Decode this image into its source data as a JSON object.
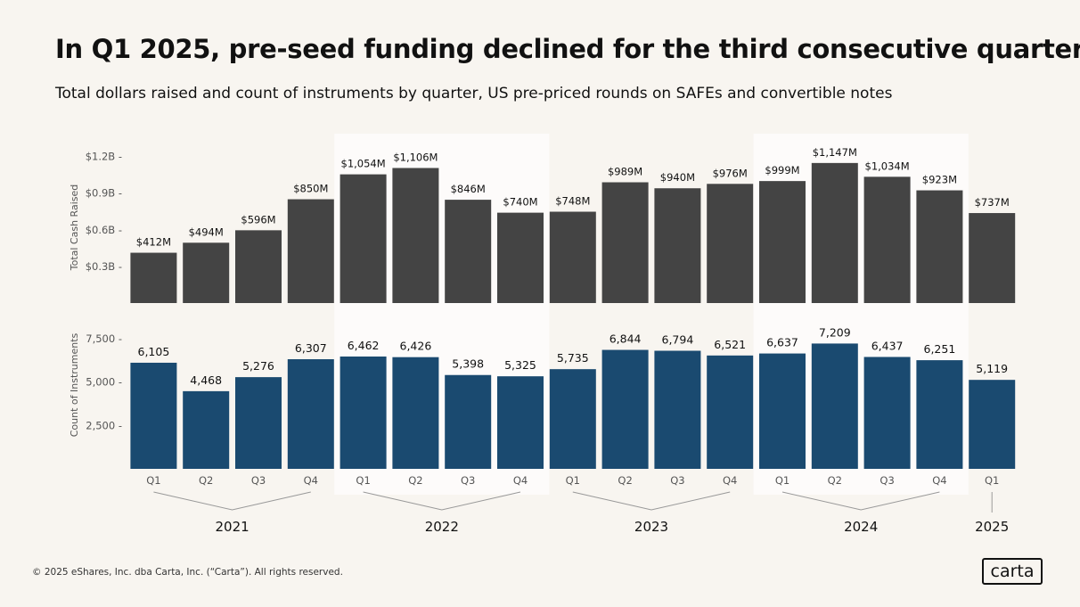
{
  "title": "In Q1 2025, pre-seed funding declined for the third consecutive quarter",
  "subtitle": "Total dollars raised and count of instruments by quarter, US pre-priced rounds on SAFEs and convertible notes",
  "footer": "© 2025 eShares, Inc. dba Carta, Inc. (“Carta”). All rights reserved.",
  "logo_text": "carta",
  "colors": {
    "background": "#f8f5f0",
    "band": "#fdfbfa",
    "cash_bar": "#444444",
    "count_bar": "#1a4a70",
    "text": "#111111",
    "axis_text": "#555555"
  },
  "chart_data": [
    {
      "type": "bar",
      "ylabel": "Total Cash Raised",
      "ytick_labels": [
        "$1.2B",
        "$0.9B",
        "$0.6B",
        "$0.3B"
      ],
      "ytick_values": [
        1.2,
        0.9,
        0.6,
        0.3
      ],
      "unit": "$B",
      "ylim": [
        0,
        1.25
      ],
      "values": [
        0.412,
        0.494,
        0.596,
        0.85,
        1.054,
        1.106,
        0.846,
        0.74,
        0.748,
        0.989,
        0.94,
        0.976,
        0.999,
        1.147,
        1.034,
        0.923,
        0.737
      ],
      "labels": [
        "$412M",
        "$494M",
        "$596M",
        "$850M",
        "$1,054M",
        "$1,106M",
        "$846M",
        "$740M",
        "$748M",
        "$989M",
        "$940M",
        "$976M",
        "$999M",
        "$1,147M",
        "$1,034M",
        "$923M",
        "$737M"
      ]
    },
    {
      "type": "bar",
      "ylabel": "Count of Instruments",
      "ytick_labels": [
        "7,500",
        "5,000",
        "2,500"
      ],
      "ytick_values": [
        7500,
        5000,
        2500
      ],
      "ylim": [
        0,
        7800
      ],
      "values": [
        6105,
        4468,
        5276,
        6307,
        6462,
        6426,
        5398,
        5325,
        5735,
        6844,
        6794,
        6521,
        6637,
        7209,
        6437,
        6251,
        5119
      ],
      "labels": [
        "6,105",
        "4,468",
        "5,276",
        "6,307",
        "6,462",
        "6,426",
        "5,398",
        "5,325",
        "5,735",
        "6,844",
        "6,794",
        "6,521",
        "6,637",
        "7,209",
        "6,437",
        "6,251",
        "5,119"
      ]
    }
  ],
  "quarters": [
    "Q1",
    "Q2",
    "Q3",
    "Q4",
    "Q1",
    "Q2",
    "Q3",
    "Q4",
    "Q1",
    "Q2",
    "Q3",
    "Q4",
    "Q1",
    "Q2",
    "Q3",
    "Q4",
    "Q1"
  ],
  "years": [
    {
      "label": "2021",
      "start": 0,
      "count": 4
    },
    {
      "label": "2022",
      "start": 4,
      "count": 4
    },
    {
      "label": "2023",
      "start": 8,
      "count": 4
    },
    {
      "label": "2024",
      "start": 12,
      "count": 4
    },
    {
      "label": "2025",
      "start": 16,
      "count": 1
    }
  ],
  "highlighted_years": [
    "2022",
    "2024"
  ]
}
